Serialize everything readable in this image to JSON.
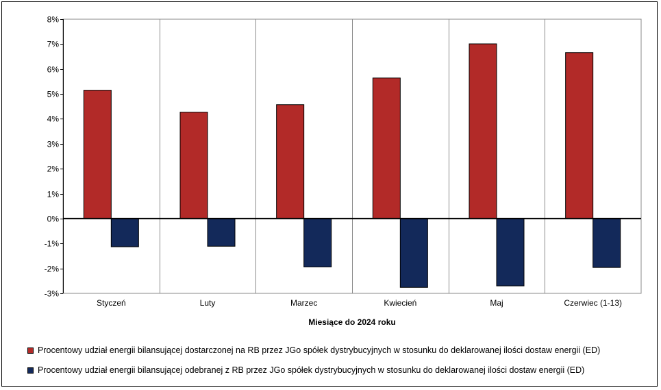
{
  "chart_data": {
    "type": "bar",
    "categories": [
      "Styczeń",
      "Luty",
      "Marzec",
      "Kwiecień",
      "Maj",
      "Czerwiec (1-13)"
    ],
    "series": [
      {
        "name": "Procentowy udział energii bilansującej dostarczonej na RB przez JGo spółek dystrybucyjnych w stosunku do deklarowanej ilości dostaw energii (ED)",
        "color": "#b22a28",
        "values": [
          5.15,
          4.27,
          4.57,
          5.64,
          7.01,
          6.66
        ]
      },
      {
        "name": "Procentowy udział energii bilansującej odebranej z RB przez JGo spółek dystrybucyjnych w stosunku do deklarowanej ilości dostaw energii (ED)",
        "color": "#13295a",
        "values": [
          -1.13,
          -1.11,
          -1.94,
          -2.76,
          -2.7,
          -1.96
        ]
      }
    ],
    "y_ticks": [
      "8%",
      "7%",
      "6%",
      "5%",
      "4%",
      "3%",
      "2%",
      "1%",
      "0%",
      "-1%",
      "-2%",
      "-3%"
    ],
    "ylim": [
      -3,
      8
    ],
    "xlabel": "Miesiące do 2024  roku",
    "ylabel": "",
    "grid": "vertical",
    "legend_position": "bottom"
  }
}
